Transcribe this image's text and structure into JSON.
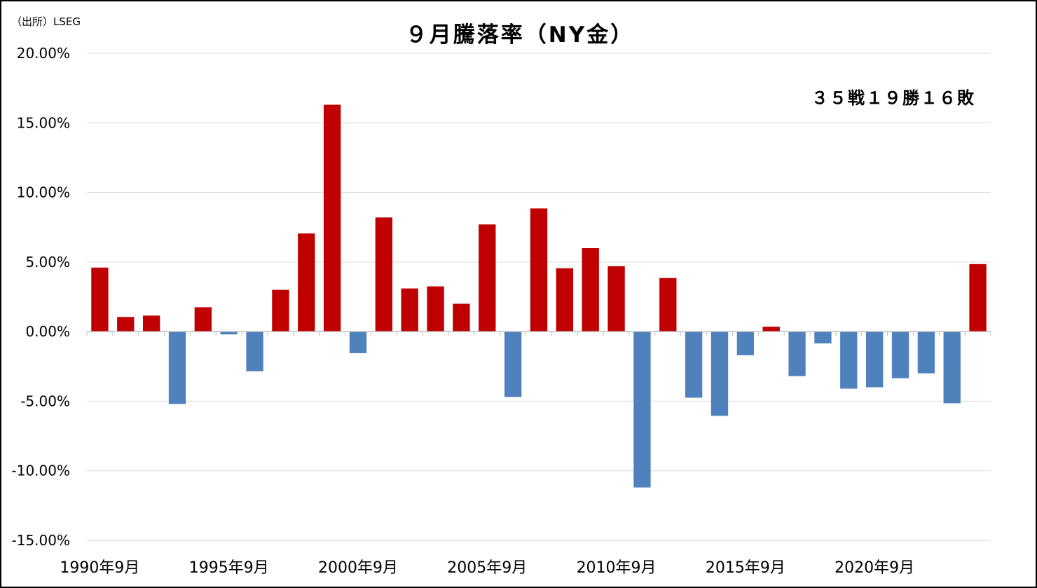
{
  "source_note": "（出所）LSEG",
  "record_note": "３５戦１９勝１６敗",
  "colors": {
    "up": "#c00000",
    "down": "#4f81bd",
    "grid": "#d9d9d9",
    "axis": "#bfbfbf"
  },
  "chart_data": {
    "type": "bar",
    "title": "９月騰落率（NY金）",
    "xlabel": "",
    "ylabel": "",
    "ylim": [
      -15,
      20
    ],
    "yticks": [
      20,
      15,
      10,
      5,
      0,
      -5,
      -10,
      -15
    ],
    "ytick_labels": [
      "20.00%",
      "15.00%",
      "10.00%",
      "5.00%",
      "0.00%",
      "-5.00%",
      "-10.00%",
      "-15.00%"
    ],
    "xtick_labels": [
      "1990年9月",
      "1995年9月",
      "2000年9月",
      "2005年9月",
      "2010年9月",
      "2015年9月",
      "2020年9月"
    ],
    "xtick_indices": [
      0,
      5,
      10,
      15,
      20,
      25,
      30
    ],
    "grid": true,
    "legend": "none",
    "categories": [
      "1990",
      "1991",
      "1992",
      "1993",
      "1994",
      "1995",
      "1996",
      "1997",
      "1998",
      "1999",
      "2000",
      "2001",
      "2002",
      "2003",
      "2004",
      "2005",
      "2006",
      "2007",
      "2008",
      "2009",
      "2010",
      "2011",
      "2012",
      "2013",
      "2014",
      "2015",
      "2016",
      "2017",
      "2018",
      "2019",
      "2020",
      "2021",
      "2022",
      "2023",
      "2024"
    ],
    "values": [
      4.6,
      1.05,
      1.15,
      -5.2,
      1.75,
      -0.2,
      -2.85,
      3.0,
      7.05,
      16.3,
      -1.55,
      8.2,
      3.1,
      3.25,
      2.0,
      7.7,
      -4.7,
      8.85,
      4.55,
      6.0,
      4.7,
      -11.2,
      3.85,
      -4.75,
      -6.05,
      -1.7,
      0.35,
      -3.2,
      -0.85,
      -4.1,
      -4.0,
      -3.35,
      -3.0,
      -5.15,
      4.85
    ]
  }
}
